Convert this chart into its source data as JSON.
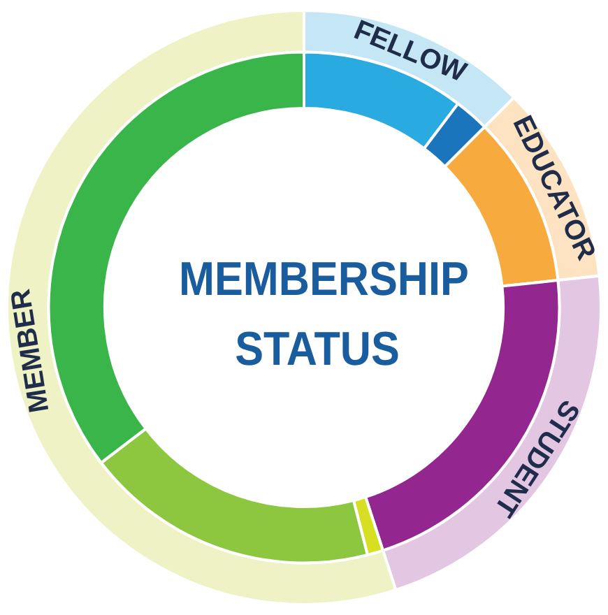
{
  "chart_data": [
    {
      "type": "donut",
      "categories": [
        "FELLOW",
        "EDUCATOR",
        "STUDENT",
        "MEMBER"
      ],
      "values": [
        12.5,
        10.8,
        21.7,
        55.0
      ],
      "colors": [
        "#c5e6f5",
        "#fde3c2",
        "#e2c6e2",
        "#eef2c4"
      ],
      "legend": false
    },
    {
      "type": "donut",
      "title": "MEMBERSHIP STATUS",
      "categories": [
        null,
        null,
        null,
        null,
        null,
        null,
        null
      ],
      "values": [
        10.3,
        2.2,
        10.8,
        21.7,
        1.0,
        18.6,
        35.4
      ],
      "colors": [
        "#29aae1",
        "#1b75bc",
        "#f7ab3e",
        "#93278f",
        "#d7df23",
        "#8dc63f",
        "#39b54a"
      ],
      "legend": false
    }
  ]
}
